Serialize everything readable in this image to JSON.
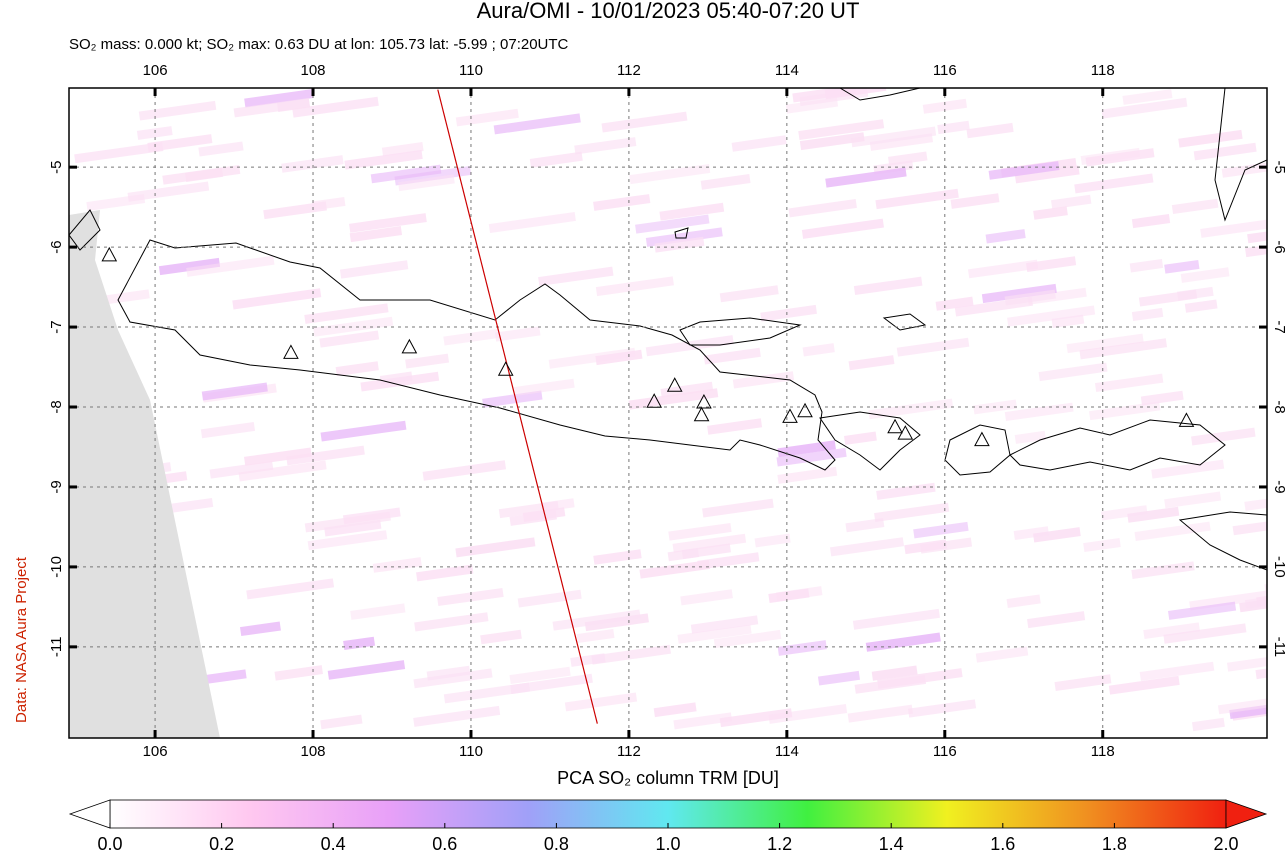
{
  "chart_data": {
    "type": "map",
    "title": "Aura/OMI - 10/01/2023 05:40-07:20 UT",
    "subtitle": "SO₂ mass: 0.000 kt; SO₂ max: 0.63 DU at lon: 105.73 lat: -5.99 ; 07:20UTC",
    "source": "Data: NASA Aura Project",
    "xlim": [
      104.91,
      120.08
    ],
    "ylim": [
      -12.14,
      -4.01
    ],
    "xticks": [
      106,
      108,
      110,
      112,
      114,
      116,
      118
    ],
    "yticks": [
      -5,
      -6,
      -7,
      -8,
      -9,
      -10,
      -11
    ],
    "grid": true,
    "volcanoes": {
      "lon": [
        105.42,
        107.72,
        109.22,
        110.44,
        112.32,
        112.58,
        112.95,
        112.92,
        114.04,
        114.23,
        115.37,
        115.5,
        116.47,
        119.06
      ],
      "lat": [
        -6.11,
        -7.33,
        -7.26,
        -7.54,
        -7.94,
        -7.74,
        -7.95,
        -8.11,
        -8.13,
        -8.06,
        -8.26,
        -8.34,
        -8.42,
        -8.18
      ]
    },
    "orbit_track": {
      "color": "#cc0000",
      "lon": [
        109.58,
        111.6
      ],
      "lat": [
        -4.03,
        -11.96
      ]
    },
    "colorbar": {
      "label": "PCA SO₂ column TRM [DU]",
      "clim": [
        0,
        2
      ],
      "colors": [
        "#ffffff",
        "#ffc8f0",
        "#e8a0f8",
        "#a0a0f8",
        "#60e8f0",
        "#40f040",
        "#f0f020",
        "#f09020",
        "#f02010"
      ],
      "ticks": [
        {
          "value": 0,
          "label": "0.0"
        },
        {
          "value": 0.2,
          "label": "0.2"
        },
        {
          "value": 0.4,
          "label": "0.4"
        },
        {
          "value": 0.6,
          "label": "0.6"
        },
        {
          "value": 0.8,
          "label": "0.8"
        },
        {
          "value": 1,
          "label": "1.0"
        },
        {
          "value": 1.2,
          "label": "1.2"
        },
        {
          "value": 1.4,
          "label": "1.4"
        },
        {
          "value": 1.6,
          "label": "1.6"
        },
        {
          "value": 1.8,
          "label": "1.8"
        },
        {
          "value": 2,
          "label": "2.0"
        }
      ]
    }
  }
}
